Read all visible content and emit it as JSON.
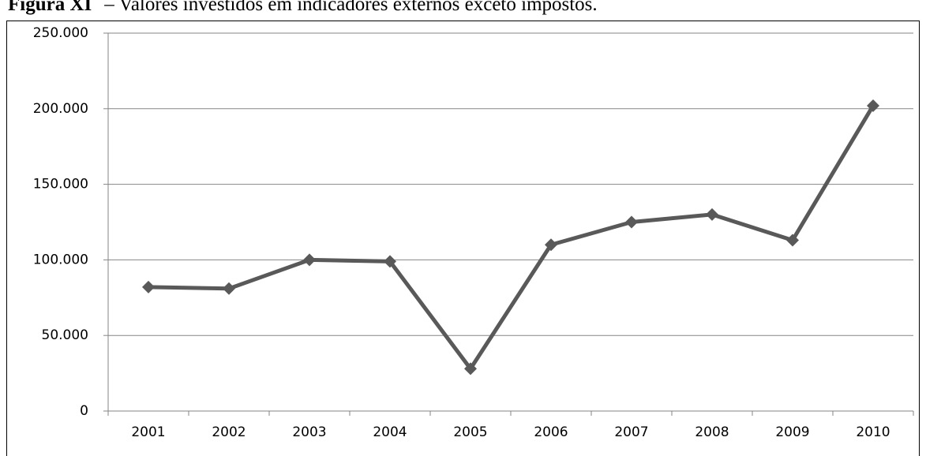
{
  "chart_data": {
    "type": "line",
    "title_label": "Figura XI",
    "title": "– Valores investidos em indicadores externos exceto impostos.",
    "categories": [
      "2001",
      "2002",
      "2003",
      "2004",
      "2005",
      "2006",
      "2007",
      "2008",
      "2009",
      "2010"
    ],
    "values": [
      82000,
      81000,
      100000,
      99000,
      28000,
      110000,
      125000,
      130000,
      113000,
      202000
    ],
    "color": "#595959",
    "ylim": [
      0,
      250000
    ],
    "yticks": [
      0,
      {
        "value": 50000,
        "label": "50.000"
      },
      {
        "value": 100000,
        "label": "100.000"
      },
      {
        "value": 150000,
        "label": "150.000"
      },
      {
        "value": 200000,
        "label": "200.000"
      },
      {
        "value": 250000,
        "label": "250.000"
      }
    ],
    "grid": true
  }
}
